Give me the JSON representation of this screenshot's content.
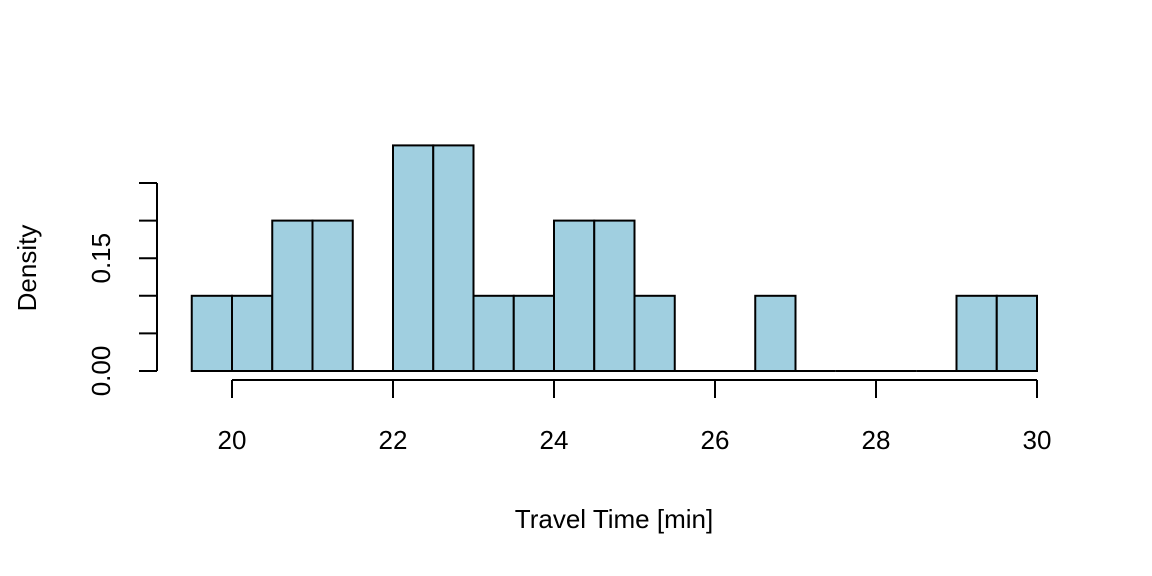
{
  "chart_data": {
    "type": "bar",
    "title": "",
    "xlabel": "Travel Time [min]",
    "ylabel": "Density",
    "bin_width": 0.5,
    "bins": [
      {
        "x0": 19.5,
        "x1": 20.0,
        "density": 0.1
      },
      {
        "x0": 20.0,
        "x1": 20.5,
        "density": 0.1
      },
      {
        "x0": 20.5,
        "x1": 21.0,
        "density": 0.2
      },
      {
        "x0": 21.0,
        "x1": 21.5,
        "density": 0.2
      },
      {
        "x0": 21.5,
        "x1": 22.0,
        "density": 0.0
      },
      {
        "x0": 22.0,
        "x1": 22.5,
        "density": 0.3
      },
      {
        "x0": 22.5,
        "x1": 23.0,
        "density": 0.3
      },
      {
        "x0": 23.0,
        "x1": 23.5,
        "density": 0.1
      },
      {
        "x0": 23.5,
        "x1": 24.0,
        "density": 0.1
      },
      {
        "x0": 24.0,
        "x1": 24.5,
        "density": 0.2
      },
      {
        "x0": 24.5,
        "x1": 25.0,
        "density": 0.2
      },
      {
        "x0": 25.0,
        "x1": 25.5,
        "density": 0.1
      },
      {
        "x0": 25.5,
        "x1": 26.0,
        "density": 0.0
      },
      {
        "x0": 26.0,
        "x1": 26.5,
        "density": 0.0
      },
      {
        "x0": 26.5,
        "x1": 27.0,
        "density": 0.1
      },
      {
        "x0": 27.0,
        "x1": 27.5,
        "density": 0.0
      },
      {
        "x0": 27.5,
        "x1": 28.0,
        "density": 0.0
      },
      {
        "x0": 28.0,
        "x1": 28.5,
        "density": 0.0
      },
      {
        "x0": 28.5,
        "x1": 29.0,
        "density": 0.0
      },
      {
        "x0": 29.0,
        "x1": 29.5,
        "density": 0.1
      },
      {
        "x0": 29.5,
        "x1": 30.0,
        "density": 0.1
      }
    ],
    "x_ticks": [
      20,
      22,
      24,
      26,
      28,
      30
    ],
    "x_tick_labels": [
      "20",
      "22",
      "24",
      "26",
      "28",
      "30"
    ],
    "y_ticks": [
      0.0,
      0.05,
      0.1,
      0.15,
      0.2,
      0.25
    ],
    "y_tick_labels": [
      "0.00",
      "",
      "",
      "0.15",
      "",
      ""
    ],
    "xlim": [
      19.5,
      30.0
    ],
    "ylim": [
      0.0,
      0.3
    ],
    "grid": false,
    "legend": "none",
    "bar_color": "#a0cfe0",
    "edge_color": "#000000"
  }
}
